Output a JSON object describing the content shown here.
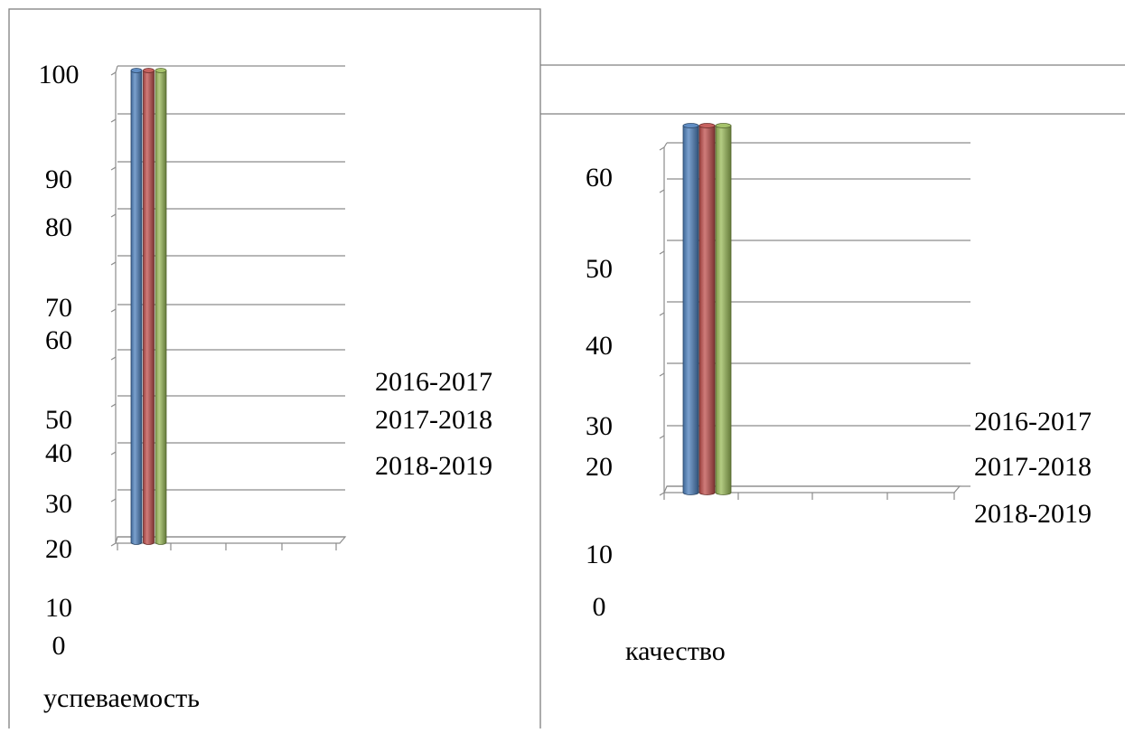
{
  "colors": {
    "blue": "#4F81BD",
    "red": "#C0504D",
    "green": "#9BBB59"
  },
  "charts": [
    {
      "name": "uspevaemost",
      "category_label": "успеваемость",
      "y_labels": [
        "100",
        "90",
        "80",
        "70",
        "60",
        "50",
        "40",
        "30",
        "20",
        "10",
        "0"
      ],
      "legend": [
        "2016-2017",
        "2017-2018",
        "2018-2019"
      ],
      "series": [
        {
          "name": "2016-2017",
          "value": 100
        },
        {
          "name": "2017-2018",
          "value": 100
        },
        {
          "name": "2018-2019",
          "value": 100
        }
      ]
    },
    {
      "name": "kachestvo",
      "category_label": "качество",
      "y_labels": [
        "60",
        "50",
        "40",
        "30",
        "20",
        "10",
        "0"
      ],
      "legend": [
        "2016-2017",
        "2017-2018",
        "2018-2019"
      ],
      "series": [
        {
          "name": "2016-2017",
          "value": 60
        },
        {
          "name": "2017-2018",
          "value": 60
        },
        {
          "name": "2018-2019",
          "value": 60
        }
      ]
    }
  ],
  "chart_data": [
    {
      "type": "bar",
      "categories": [
        "успеваемость"
      ],
      "series": [
        {
          "name": "2016-2017",
          "values": [
            100
          ]
        },
        {
          "name": "2017-2018",
          "values": [
            100
          ]
        },
        {
          "name": "2018-2019",
          "values": [
            100
          ]
        }
      ],
      "ylim": [
        0,
        100
      ],
      "legend_placement": "right",
      "grid": true
    },
    {
      "type": "bar",
      "categories": [
        "качество"
      ],
      "series": [
        {
          "name": "2016-2017",
          "values": [
            60
          ]
        },
        {
          "name": "2017-2018",
          "values": [
            60
          ]
        },
        {
          "name": "2018-2019",
          "values": [
            60
          ]
        }
      ],
      "ylim": [
        0,
        60
      ],
      "legend_placement": "right",
      "grid": true
    }
  ]
}
